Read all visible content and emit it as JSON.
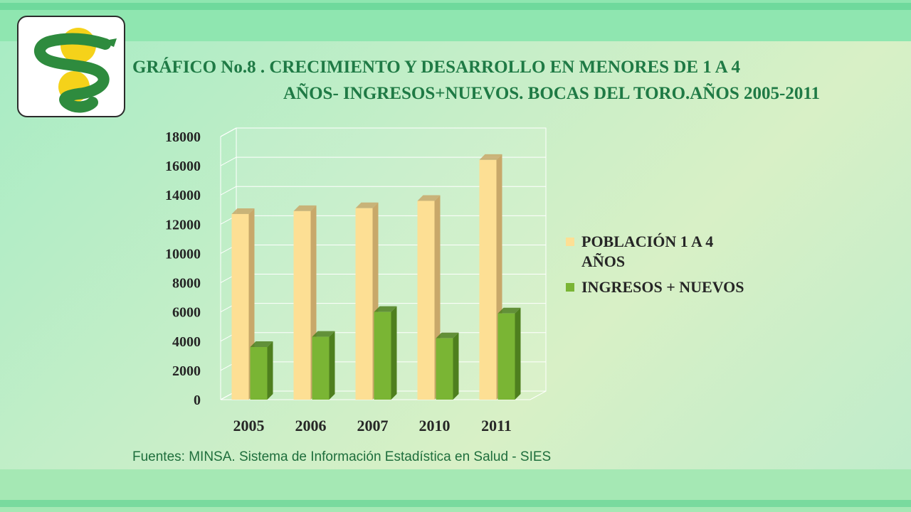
{
  "title": {
    "line1": "GRÁFICO No.8 . CRECIMIENTO Y DESARROLLO EN MENORES DE 1 A 4",
    "line2": "AÑOS- INGRESOS+NUEVOS. BOCAS DEL TORO.AÑOS 2005-2011"
  },
  "source": "Fuentes: MINSA. Sistema de Información Estadística en Salud - SIES",
  "colors": {
    "poblacion": "#fddf94",
    "poblacion_side": "#c8a86a",
    "ingresos": "#7ab534",
    "ingresos_side": "#4e7f1e",
    "title": "#1f7a45"
  },
  "chart_data": {
    "type": "bar",
    "title": "GRÁFICO No.8 . CRECIMIENTO Y DESARROLLO EN MENORES DE 1 A 4 AÑOS- INGRESOS+NUEVOS. BOCAS DEL TORO.AÑOS 2005-2011",
    "categories": [
      "2005",
      "2006",
      "2007",
      "2010",
      "2011"
    ],
    "series": [
      {
        "name": "POBLACIÓN 1 A 4 AÑOS",
        "values": [
          12700,
          12900,
          13100,
          13600,
          16400
        ]
      },
      {
        "name": "INGRESOS + NUEVOS",
        "values": [
          3600,
          4300,
          6000,
          4200,
          5900
        ]
      }
    ],
    "y_ticks": [
      "0",
      "2000",
      "4000",
      "6000",
      "8000",
      "10000",
      "12000",
      "14000",
      "16000",
      "18000"
    ],
    "ylim": [
      0,
      18000
    ],
    "xlabel": "",
    "ylabel": "",
    "grid": true,
    "legend_position": "right"
  }
}
